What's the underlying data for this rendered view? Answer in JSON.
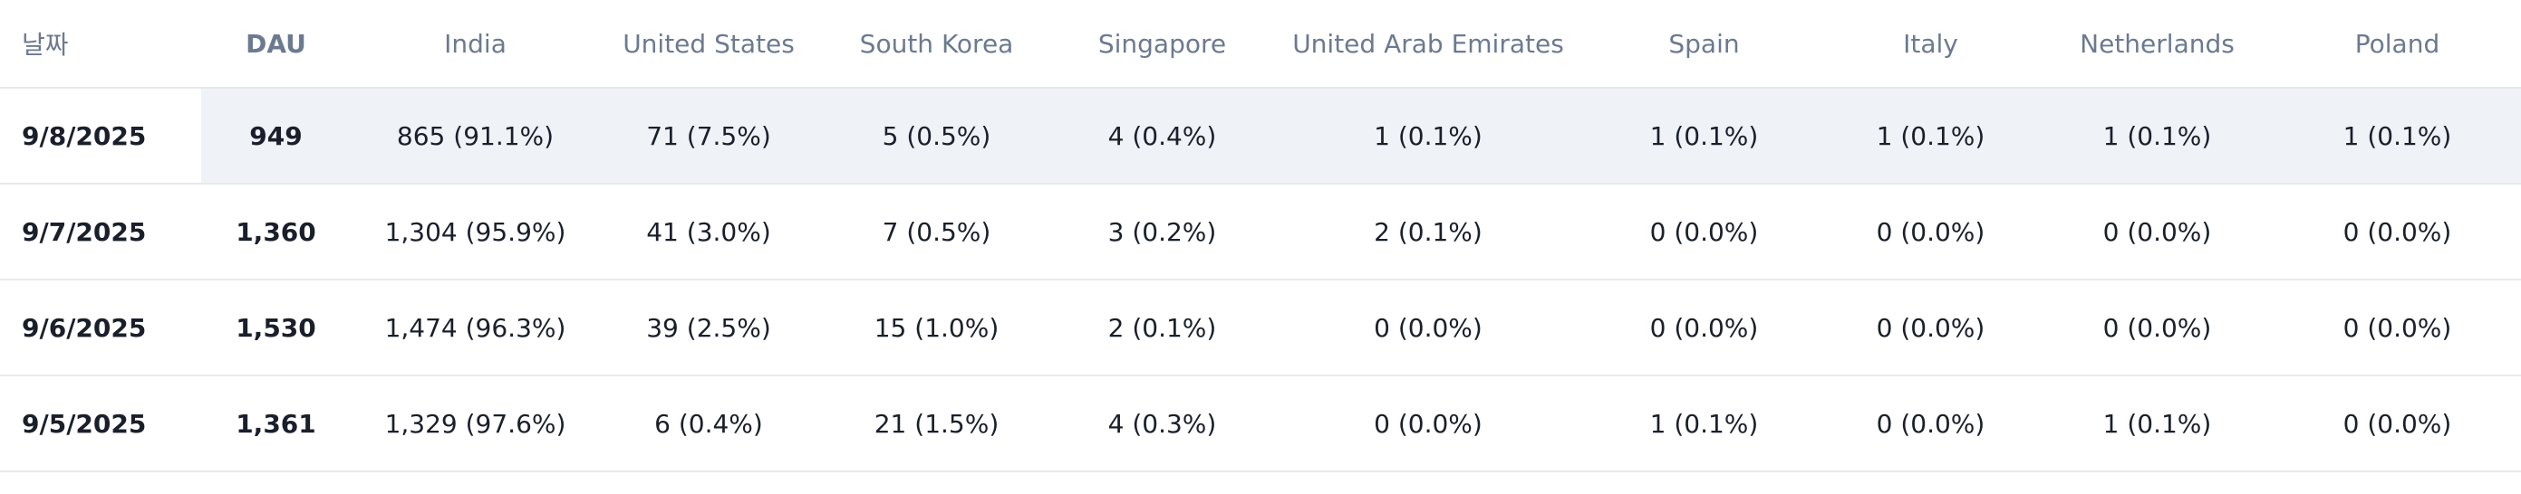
{
  "table": {
    "headers": [
      "날짜",
      "DAU",
      "India",
      "United States",
      "South Korea",
      "Singapore",
      "United Arab Emirates",
      "Spain",
      "Italy",
      "Netherlands",
      "Poland"
    ],
    "rows": [
      [
        "9/8/2025",
        "949",
        "865 (91.1%)",
        "71 (7.5%)",
        "5 (0.5%)",
        "4 (0.4%)",
        "1 (0.1%)",
        "1 (0.1%)",
        "1 (0.1%)",
        "1 (0.1%)",
        "1 (0.1%)"
      ],
      [
        "9/7/2025",
        "1,360",
        "1,304 (95.9%)",
        "41 (3.0%)",
        "7 (0.5%)",
        "3 (0.2%)",
        "2 (0.1%)",
        "0 (0.0%)",
        "0 (0.0%)",
        "0 (0.0%)",
        "0 (0.0%)"
      ],
      [
        "9/6/2025",
        "1,530",
        "1,474 (96.3%)",
        "39 (2.5%)",
        "15 (1.0%)",
        "2 (0.1%)",
        "0 (0.0%)",
        "0 (0.0%)",
        "0 (0.0%)",
        "0 (0.0%)",
        "0 (0.0%)"
      ],
      [
        "9/5/2025",
        "1,361",
        "1,329 (97.6%)",
        "6 (0.4%)",
        "21 (1.5%)",
        "4 (0.3%)",
        "0 (0.0%)",
        "1 (0.1%)",
        "0 (0.0%)",
        "1 (0.1%)",
        "0 (0.0%)"
      ]
    ],
    "highlighted_row": 0
  },
  "colors": {
    "header_text": "#6b7a90",
    "body_text": "#1a1f2b",
    "row_highlight": "#eff3f8",
    "border": "#e6e9ee"
  }
}
